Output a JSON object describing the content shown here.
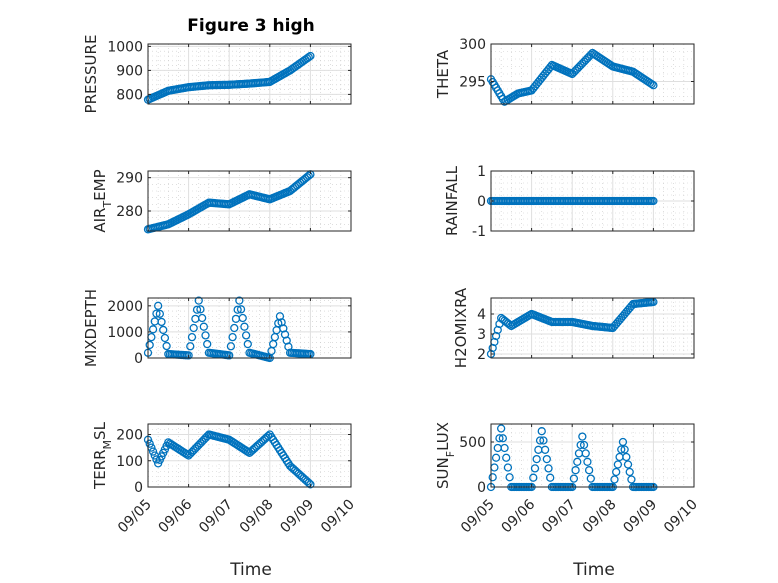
{
  "page": {
    "title": "Figure 3 high",
    "xlabel": "Time"
  },
  "colors": {
    "series": "#0072bd",
    "axis": "#262626"
  },
  "chart_data": [
    {
      "type": "scatter",
      "ylabel": "PRESSURE",
      "ylabel_sub": "",
      "ylabel_after": "",
      "ylim": [
        760,
        1010
      ],
      "yticks": [
        800,
        900,
        1000
      ],
      "yticklabels": [
        "800",
        "900",
        "1000"
      ],
      "x": [
        "09/05 00:00",
        "09/05 12:00",
        "09/06 00:00",
        "09/06 12:00",
        "09/07 00:00",
        "09/07 12:00",
        "09/08 00:00",
        "09/08 12:00",
        "09/09 00:00"
      ],
      "y": [
        778,
        815,
        830,
        838,
        840,
        845,
        852,
        900,
        960
      ]
    },
    {
      "type": "scatter",
      "ylabel": "THETA",
      "ylabel_sub": "",
      "ylabel_after": "",
      "ylim": [
        292,
        300
      ],
      "yticks": [
        295,
        300
      ],
      "yticklabels": [
        "295",
        "300"
      ],
      "x": [
        "09/05 00:00",
        "09/05 08:00",
        "09/05 16:00",
        "09/06 00:00",
        "09/06 12:00",
        "09/07 00:00",
        "09/07 12:00",
        "09/08 00:00",
        "09/08 12:00",
        "09/09 00:00"
      ],
      "y": [
        295.3,
        292.3,
        293.4,
        293.8,
        297.2,
        296.0,
        298.8,
        297.0,
        296.3,
        294.5
      ]
    },
    {
      "type": "scatter",
      "ylabel": "AIR",
      "ylabel_sub": "T",
      "ylabel_after": "EMP",
      "ylim": [
        274,
        292
      ],
      "yticks": [
        280,
        290
      ],
      "yticklabels": [
        "280",
        "290"
      ],
      "x": [
        "09/05 00:00",
        "09/05 12:00",
        "09/06 00:00",
        "09/06 12:00",
        "09/07 00:00",
        "09/07 12:00",
        "09/08 00:00",
        "09/08 12:00",
        "09/09 00:00"
      ],
      "y": [
        274.5,
        276.0,
        279.0,
        282.5,
        282.0,
        285.0,
        283.5,
        286.0,
        291.0
      ]
    },
    {
      "type": "scatter",
      "ylabel": "RAINFALL",
      "ylabel_sub": "",
      "ylabel_after": "",
      "ylim": [
        -1,
        1
      ],
      "yticks": [
        -1,
        0,
        1
      ],
      "yticklabels": [
        "-1",
        "0",
        "1"
      ],
      "x": [
        "09/05 00:00",
        "09/09 00:00"
      ],
      "y": [
        0,
        0
      ]
    },
    {
      "type": "scatter",
      "ylabel": "MIXDEPTH",
      "ylabel_sub": "",
      "ylabel_after": "",
      "ylim": [
        0,
        2300
      ],
      "yticks": [
        0,
        1000,
        2000
      ],
      "yticklabels": [
        "0",
        "1000",
        "2000"
      ],
      "x": [
        "09/05 00:00",
        "09/05 06:00",
        "09/05 12:00",
        "09/06 00:00",
        "09/06 06:00",
        "09/06 12:00",
        "09/07 00:00",
        "09/07 06:00",
        "09/07 12:00",
        "09/08 00:00",
        "09/08 06:00",
        "09/08 12:00",
        "09/09 00:00"
      ],
      "y": [
        200,
        2000,
        150,
        100,
        2200,
        200,
        100,
        2200,
        200,
        0,
        1600,
        200,
        150
      ]
    },
    {
      "type": "scatter",
      "ylabel": "H2OMIXRA",
      "ylabel_sub": "",
      "ylabel_after": "",
      "ylim": [
        1.8,
        4.8
      ],
      "yticks": [
        2,
        3,
        4
      ],
      "yticklabels": [
        "2",
        "3",
        "4"
      ],
      "x": [
        "09/05 00:00",
        "09/05 06:00",
        "09/05 12:00",
        "09/06 00:00",
        "09/06 12:00",
        "09/07 00:00",
        "09/07 12:00",
        "09/08 00:00",
        "09/08 12:00",
        "09/09 00:00"
      ],
      "y": [
        2.0,
        3.8,
        3.4,
        4.0,
        3.6,
        3.6,
        3.4,
        3.3,
        4.5,
        4.6
      ]
    },
    {
      "type": "scatter",
      "ylabel": "TERR",
      "ylabel_sub": "M",
      "ylabel_after": "SL",
      "ylim": [
        0,
        240
      ],
      "yticks": [
        0,
        100,
        200
      ],
      "yticklabels": [
        "0",
        "100",
        "200"
      ],
      "x": [
        "09/05 00:00",
        "09/05 06:00",
        "09/05 12:00",
        "09/06 00:00",
        "09/06 12:00",
        "09/07 00:00",
        "09/07 12:00",
        "09/08 00:00",
        "09/08 12:00",
        "09/09 00:00"
      ],
      "y": [
        180,
        90,
        170,
        120,
        200,
        180,
        130,
        200,
        80,
        10
      ]
    },
    {
      "type": "scatter",
      "ylabel": "SUN",
      "ylabel_sub": "F",
      "ylabel_after": "LUX",
      "ylim": [
        0,
        700
      ],
      "yticks": [
        0,
        500
      ],
      "yticklabels": [
        "0",
        "500"
      ],
      "x": [
        "09/05 00:00",
        "09/05 06:00",
        "09/05 12:00",
        "09/06 00:00",
        "09/06 06:00",
        "09/06 12:00",
        "09/07 00:00",
        "09/07 06:00",
        "09/07 12:00",
        "09/08 00:00",
        "09/08 06:00",
        "09/08 12:00",
        "09/09 00:00"
      ],
      "y": [
        0,
        650,
        0,
        0,
        620,
        0,
        0,
        560,
        0,
        0,
        500,
        0,
        0
      ]
    }
  ],
  "xaxis": {
    "xlim": [
      "09/05 00:00",
      "09/10 00:00"
    ],
    "xticks": [
      "09/05",
      "09/06",
      "09/07",
      "09/08",
      "09/09",
      "09/10"
    ]
  }
}
